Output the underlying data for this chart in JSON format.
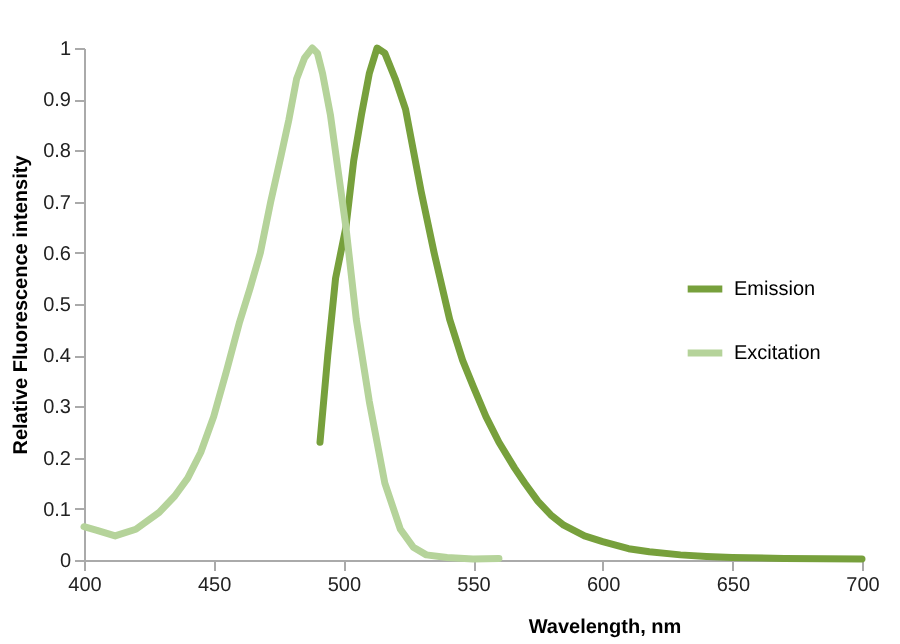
{
  "chart_data": {
    "type": "line",
    "xlabel": "Wavelength, nm",
    "ylabel": "Relative Fluorescence intensity",
    "xlim": [
      400,
      700
    ],
    "xticks": [
      400,
      450,
      500,
      550,
      600,
      650,
      700
    ],
    "ylim": [
      0,
      1
    ],
    "yticks": [
      0,
      0.1,
      0.2,
      0.3,
      0.4,
      0.5,
      0.6,
      0.7,
      0.8,
      0.9,
      1
    ],
    "grid": false,
    "legend": "right",
    "marker": "none",
    "line_style": "solid",
    "series": [
      {
        "name": "Emission",
        "color": "#77a03c",
        "x": [
          491,
          494,
          497,
          501,
          504,
          507,
          510,
          513,
          516,
          520,
          524,
          527,
          530,
          535,
          541,
          546,
          550,
          555,
          560,
          566,
          570,
          575,
          580,
          585,
          593,
          600,
          610,
          618,
          630,
          640,
          650,
          670,
          700
        ],
        "values": [
          0.23,
          0.4,
          0.55,
          0.65,
          0.78,
          0.87,
          0.95,
          1.0,
          0.99,
          0.94,
          0.88,
          0.8,
          0.72,
          0.6,
          0.47,
          0.39,
          0.34,
          0.28,
          0.23,
          0.18,
          0.15,
          0.115,
          0.088,
          0.068,
          0.047,
          0.036,
          0.022,
          0.016,
          0.01,
          0.007,
          0.005,
          0.003,
          0.002
        ]
      },
      {
        "name": "Excitation",
        "color": "#b5d39a",
        "x": [
          400,
          405,
          412,
          420,
          429,
          435,
          440,
          445,
          450,
          455,
          460,
          464,
          468,
          472,
          476,
          479,
          482,
          485,
          488,
          490,
          492,
          495,
          498,
          501,
          505,
          510,
          516,
          522,
          527,
          532,
          540,
          550,
          560
        ],
        "values": [
          0.065,
          0.058,
          0.047,
          0.06,
          0.093,
          0.125,
          0.16,
          0.21,
          0.28,
          0.37,
          0.465,
          0.53,
          0.6,
          0.7,
          0.79,
          0.86,
          0.94,
          0.98,
          1.0,
          0.99,
          0.95,
          0.87,
          0.76,
          0.65,
          0.47,
          0.31,
          0.15,
          0.06,
          0.025,
          0.01,
          0.005,
          0.002,
          0.003
        ]
      }
    ]
  }
}
